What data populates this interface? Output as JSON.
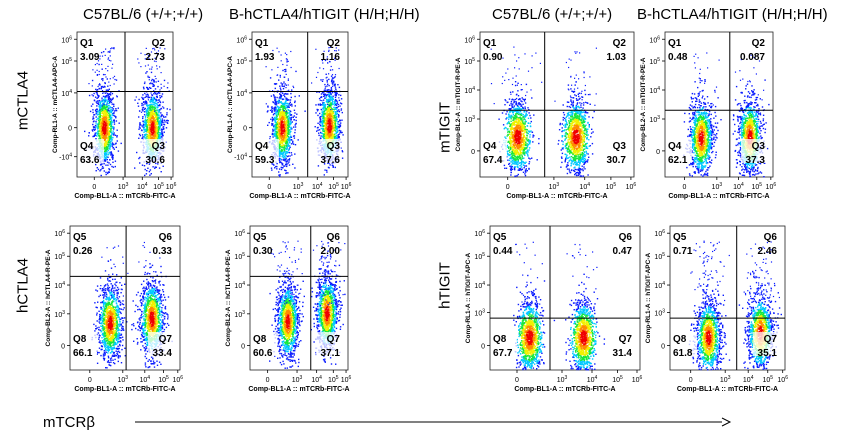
{
  "column_headers": [
    "C57BL/6 (+/+;+/+)",
    "B-hCTLA4/hTIGIT (H/H;H/H)",
    "C57BL/6 (+/+;+/+)",
    "B-hCTLA4/hTIGIT (H/H;H/H)"
  ],
  "row_labels": {
    "mctla4": "mCTLA4",
    "hctla4": "hCTLA4",
    "mtigit": "mTIGIT",
    "htigit": "hTIGIT"
  },
  "bottom_axis_label": "mTCRβ",
  "colors": {
    "low": "#0000ff",
    "mid": "#00ffff",
    "midhigh": "#00ff00",
    "high": "#ffff00",
    "peak": "#ff0000",
    "gate": "#000000"
  },
  "chart_data": [
    {
      "type": "scatter",
      "id": "mctla4-wt",
      "xlabel": "Comp-BL1-A :: mTCRb-FITC-A",
      "ylabel": "Comp-RL1-A :: mCTLA4-APC-A",
      "x_ticks": [
        "0",
        "10^3",
        "10^4",
        "10^5",
        "10^6"
      ],
      "y_ticks": [
        "-10^4",
        "0",
        "10^4",
        "10^5",
        "10^6"
      ],
      "scale": "biexponential",
      "quadrants": [
        {
          "name": "Q1",
          "value": "3.09"
        },
        {
          "name": "Q2",
          "value": "2.73"
        },
        {
          "name": "Q3",
          "value": "30.6"
        },
        {
          "name": "Q4",
          "value": "63.6"
        }
      ]
    },
    {
      "type": "scatter",
      "id": "mctla4-hum",
      "xlabel": "Comp-BL1-A :: mTCRb-FITC-A",
      "ylabel": "Comp-RL1-A :: mCTLA4-APC-A",
      "x_ticks": [
        "0",
        "10^3",
        "10^4",
        "10^5",
        "10^6"
      ],
      "y_ticks": [
        "-10^4",
        "0",
        "10^4",
        "10^5",
        "10^6"
      ],
      "scale": "biexponential",
      "quadrants": [
        {
          "name": "Q1",
          "value": "1.93"
        },
        {
          "name": "Q2",
          "value": "1.16"
        },
        {
          "name": "Q3",
          "value": "37.6"
        },
        {
          "name": "Q4",
          "value": "59.3"
        }
      ]
    },
    {
      "type": "scatter",
      "id": "mtigit-wt",
      "xlabel": "Comp-BL1-A :: mTCRb-FITC-A",
      "ylabel": "Comp-BL2-A :: mTIGIT-R-PE-A",
      "x_ticks": [
        "0",
        "10^3",
        "10^4",
        "10^5",
        "10^6"
      ],
      "y_ticks": [
        "0",
        "10^3",
        "10^4",
        "10^5",
        "10^6"
      ],
      "scale": "biexponential",
      "quadrants": [
        {
          "name": "Q1",
          "value": "0.90"
        },
        {
          "name": "Q2",
          "value": "1.03"
        },
        {
          "name": "Q3",
          "value": "30.7"
        },
        {
          "name": "Q4",
          "value": "67.4"
        }
      ]
    },
    {
      "type": "scatter",
      "id": "mtigit-hum",
      "xlabel": "Comp-BL1-A :: mTCRb-FITC-A",
      "ylabel": "Comp-BL2-A :: mTIGIT-R-PE-A",
      "x_ticks": [
        "0",
        "10^3",
        "10^4",
        "10^5",
        "10^6"
      ],
      "y_ticks": [
        "0",
        "10^3",
        "10^4",
        "10^5",
        "10^6"
      ],
      "scale": "biexponential",
      "quadrants": [
        {
          "name": "Q1",
          "value": "0.48"
        },
        {
          "name": "Q2",
          "value": "0.087"
        },
        {
          "name": "Q3",
          "value": "37.3"
        },
        {
          "name": "Q4",
          "value": "62.1"
        }
      ]
    },
    {
      "type": "scatter",
      "id": "hctla4-wt",
      "xlabel": "Comp-BL1-A :: mTCRb-FITC-A",
      "ylabel": "Comp-BL2-A :: hCTLA4-R-PE-A",
      "x_ticks": [
        "0",
        "10^3",
        "10^4",
        "10^5",
        "10^6"
      ],
      "y_ticks": [
        "0",
        "10^3",
        "10^4",
        "10^5",
        "10^6"
      ],
      "scale": "biexponential",
      "quadrants": [
        {
          "name": "Q5",
          "value": "0.26"
        },
        {
          "name": "Q6",
          "value": "0.33"
        },
        {
          "name": "Q7",
          "value": "33.4"
        },
        {
          "name": "Q8",
          "value": "66.1"
        }
      ]
    },
    {
      "type": "scatter",
      "id": "hctla4-hum",
      "xlabel": "Comp-BL1-A :: mTCRb-FITC-A",
      "ylabel": "Comp-BL2-A :: hCTLA4-R-PE-A",
      "x_ticks": [
        "0",
        "10^3",
        "10^4",
        "10^5",
        "10^6"
      ],
      "y_ticks": [
        "0",
        "10^3",
        "10^4",
        "10^5",
        "10^6"
      ],
      "scale": "biexponential",
      "quadrants": [
        {
          "name": "Q5",
          "value": "0.30"
        },
        {
          "name": "Q6",
          "value": "2.00"
        },
        {
          "name": "Q7",
          "value": "37.1"
        },
        {
          "name": "Q8",
          "value": "60.6"
        }
      ]
    },
    {
      "type": "scatter",
      "id": "htigit-wt",
      "xlabel": "Comp-BL1-A :: mTCRb-FITC-A",
      "ylabel": "Comp-RL1-A :: hTIGIT-APC-A",
      "x_ticks": [
        "0",
        "10^3",
        "10^4",
        "10^5",
        "10^6"
      ],
      "y_ticks": [
        "0",
        "10^3",
        "10^4",
        "10^5",
        "10^6"
      ],
      "scale": "biexponential",
      "quadrants": [
        {
          "name": "Q5",
          "value": "0.44"
        },
        {
          "name": "Q6",
          "value": "0.47"
        },
        {
          "name": "Q7",
          "value": "31.4"
        },
        {
          "name": "Q8",
          "value": "67.7"
        }
      ]
    },
    {
      "type": "scatter",
      "id": "htigit-hum",
      "xlabel": "Comp-BL1-A :: mTCRb-FITC-A",
      "ylabel": "Comp-RL1-A :: hTIGIT-APC-A",
      "x_ticks": [
        "0",
        "10^3",
        "10^4",
        "10^5",
        "10^6"
      ],
      "y_ticks": [
        "0",
        "10^3",
        "10^4",
        "10^5",
        "10^6"
      ],
      "scale": "biexponential",
      "quadrants": [
        {
          "name": "Q5",
          "value": "0.71"
        },
        {
          "name": "Q6",
          "value": "2.46"
        },
        {
          "name": "Q7",
          "value": "35.1"
        },
        {
          "name": "Q8",
          "value": "61.8"
        }
      ]
    }
  ]
}
